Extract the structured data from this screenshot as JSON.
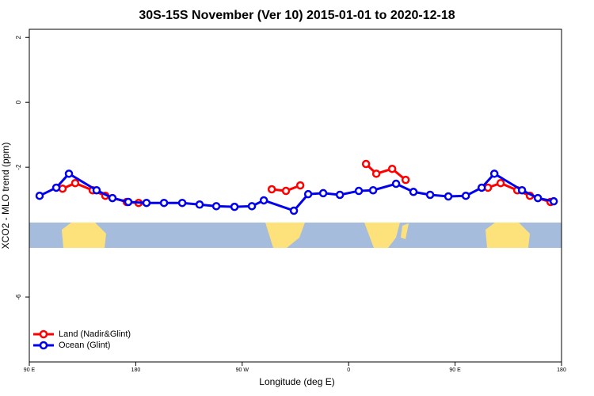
{
  "chart_data": {
    "type": "line",
    "title": "30S-15S November (Ver 10)   2015-01-01 to 2020-12-18",
    "xlabel": "Longitude (deg E)",
    "ylabel": "XCO2 - MLO trend (ppm)",
    "xlim": [
      90,
      540
    ],
    "ylim": [
      -8,
      2.25
    ],
    "xticks": [
      {
        "value": 90,
        "label": "90 E"
      },
      180,
      {
        "value": 270,
        "label": "90 W"
      },
      {
        "value": 360,
        "label": "0"
      },
      {
        "value": 450,
        "label": "90 E"
      },
      {
        "value": 540,
        "label": "180"
      }
    ],
    "yticks": [
      2,
      0,
      -2,
      -6
    ],
    "legend": "bottom-left",
    "series": [
      {
        "name": "Land (Nadir&Glint)",
        "color": "#ff0000",
        "x": [
          118.1,
          128.8,
          143.6,
          154.3,
          172.4,
          182.4,
          null,
          295.0,
          307.0,
          319.1,
          null,
          374.7,
          383.4,
          396.8,
          408.2,
          null,
          477.8,
          488.5,
          502.6,
          513.3,
          530.7
        ],
        "values": [
          -2.66,
          -2.49,
          -2.71,
          -2.88,
          -3.07,
          -3.1,
          null,
          -2.68,
          -2.73,
          -2.56,
          null,
          -1.9,
          -2.2,
          -2.05,
          -2.39,
          null,
          -2.63,
          -2.49,
          -2.71,
          -2.88,
          -3.07
        ]
      },
      {
        "name": "Ocean (Glint)",
        "color": "#0000ee",
        "x": [
          98.7,
          112.8,
          123.5,
          146.9,
          160.3,
          173.7,
          189.1,
          203.9,
          219.3,
          234.0,
          248.1,
          263.5,
          278.2,
          288.3,
          313.7,
          325.8,
          338.5,
          352.6,
          368.6,
          380.7,
          400.1,
          414.8,
          428.9,
          444.3,
          459.1,
          472.5,
          483.2,
          506.6,
          520.0,
          533.4
        ],
        "values": [
          -2.88,
          -2.63,
          -2.2,
          -2.71,
          -2.95,
          -3.07,
          -3.1,
          -3.1,
          -3.1,
          -3.15,
          -3.2,
          -3.22,
          -3.2,
          -3.02,
          -3.34,
          -2.83,
          -2.8,
          -2.85,
          -2.73,
          -2.71,
          -2.51,
          -2.76,
          -2.85,
          -2.9,
          -2.88,
          -2.63,
          -2.2,
          -2.71,
          -2.95,
          -3.05
        ]
      }
    ]
  }
}
